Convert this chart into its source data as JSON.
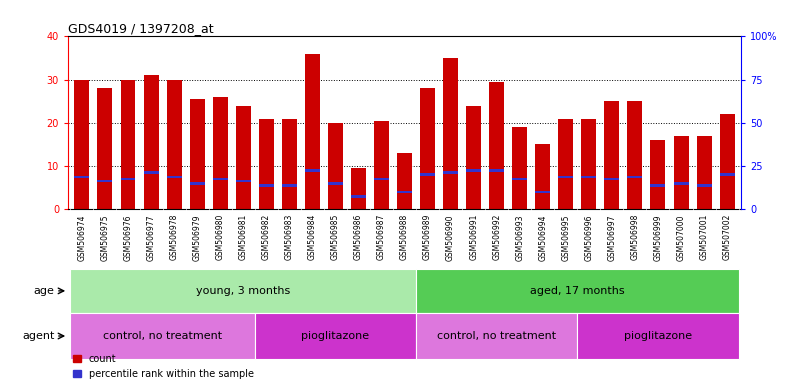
{
  "title": "GDS4019 / 1397208_at",
  "samples": [
    "GSM506974",
    "GSM506975",
    "GSM506976",
    "GSM506977",
    "GSM506978",
    "GSM506979",
    "GSM506980",
    "GSM506981",
    "GSM506982",
    "GSM506983",
    "GSM506984",
    "GSM506985",
    "GSM506986",
    "GSM506987",
    "GSM506988",
    "GSM506989",
    "GSM506990",
    "GSM506991",
    "GSM506992",
    "GSM506993",
    "GSM506994",
    "GSM506995",
    "GSM506996",
    "GSM506997",
    "GSM506998",
    "GSM506999",
    "GSM507000",
    "GSM507001",
    "GSM507002"
  ],
  "counts": [
    30,
    28,
    30,
    31,
    30,
    25.5,
    26,
    24,
    21,
    21,
    36,
    20,
    9.5,
    20.5,
    13,
    28,
    35,
    24,
    29.5,
    19,
    15,
    21,
    21,
    25,
    25,
    16,
    17,
    17,
    22
  ],
  "percentile_ranks": [
    7.5,
    6.5,
    7,
    8.5,
    7.5,
    6,
    7,
    6.5,
    5.5,
    5.5,
    9,
    6,
    3,
    7,
    4,
    8,
    8.5,
    9,
    9,
    7,
    4,
    7.5,
    7.5,
    7,
    7.5,
    5.5,
    6,
    5.5,
    8
  ],
  "bar_color": "#cc0000",
  "marker_color": "#3333cc",
  "left_ylim": [
    0,
    40
  ],
  "right_ylim": [
    0,
    100
  ],
  "left_yticks": [
    0,
    10,
    20,
    30,
    40
  ],
  "right_yticks": [
    0,
    25,
    50,
    75,
    100
  ],
  "right_yticklabels": [
    "0",
    "25",
    "50",
    "75",
    "100%"
  ],
  "grid_lines": [
    10,
    20,
    30
  ],
  "age_groups": [
    {
      "label": "young, 3 months",
      "start": 0,
      "end": 15,
      "color": "#aaeaaa"
    },
    {
      "label": "aged, 17 months",
      "start": 15,
      "end": 29,
      "color": "#55cc55"
    }
  ],
  "agent_groups": [
    {
      "label": "control, no treatment",
      "start": 0,
      "end": 8,
      "color": "#dd77dd"
    },
    {
      "label": "pioglitazone",
      "start": 8,
      "end": 15,
      "color": "#cc33cc"
    },
    {
      "label": "control, no treatment",
      "start": 15,
      "end": 22,
      "color": "#dd77dd"
    },
    {
      "label": "pioglitazone",
      "start": 22,
      "end": 29,
      "color": "#cc33cc"
    }
  ],
  "legend_items": [
    {
      "label": "count",
      "color": "#cc0000"
    },
    {
      "label": "percentile rank within the sample",
      "color": "#3333cc"
    }
  ],
  "background_color": "#ffffff",
  "plot_bg_color": "#ffffff",
  "tick_label_bg": "#cccccc"
}
